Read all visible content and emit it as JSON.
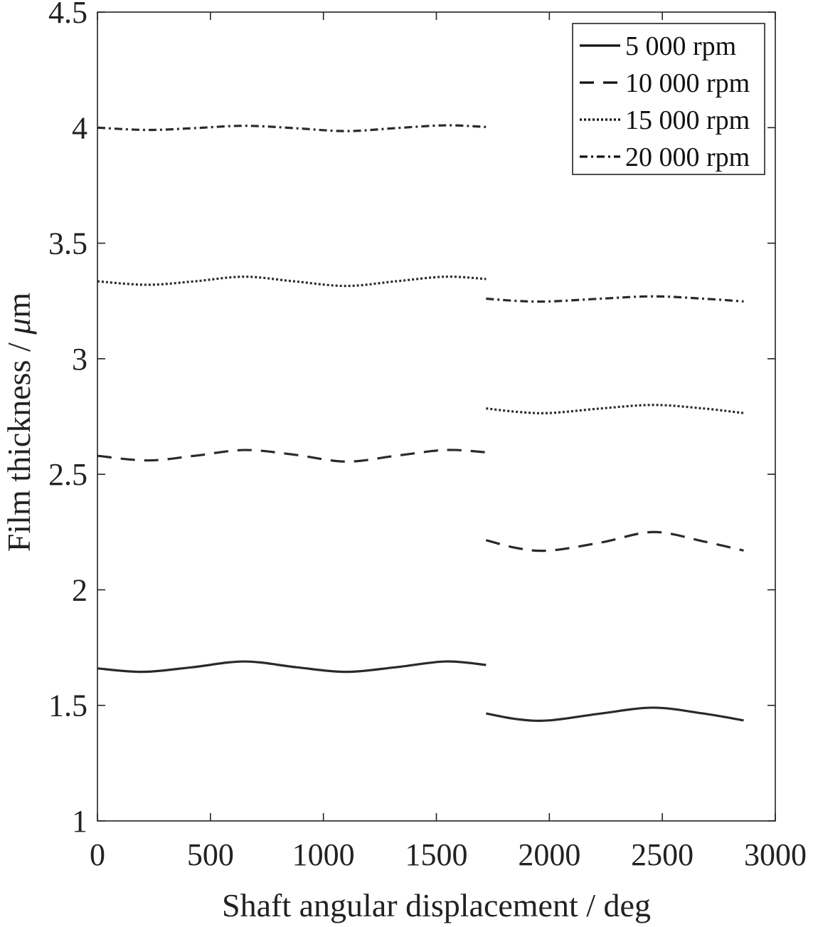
{
  "chart_data": {
    "type": "line",
    "title": "",
    "xlabel": "Shaft angular displacement / deg",
    "ylabel_prefix": "Film thickness / ",
    "ylabel_mu": "μ",
    "ylabel_suffix": "m",
    "xlim": [
      0,
      3000
    ],
    "ylim": [
      1,
      4.5
    ],
    "x_ticks": [
      "0",
      "500",
      "1000",
      "1500",
      "2000",
      "2500",
      "3000"
    ],
    "y_ticks": [
      "1",
      "1.5",
      "2",
      "2.5",
      "3",
      "3.5",
      "4",
      "4.5"
    ],
    "grid": false,
    "legend_position": "top-right",
    "series": [
      {
        "name": "5 000  rpm",
        "dash": "solid",
        "segments": [
          {
            "x": [
              0,
              200,
              420,
              650,
              880,
              1100,
              1320,
              1540,
              1720
            ],
            "y": [
              1.66,
              1.645,
              1.665,
              1.69,
              1.665,
              1.645,
              1.665,
              1.69,
              1.675
            ]
          },
          {
            "x": [
              1720,
              1860,
              2000,
              2230,
              2460,
              2680,
              2860
            ],
            "y": [
              1.465,
              1.44,
              1.435,
              1.465,
              1.49,
              1.465,
              1.435
            ]
          }
        ]
      },
      {
        "name": "10 000 rpm",
        "dash": "dashed",
        "segments": [
          {
            "x": [
              0,
              220,
              430,
              650,
              870,
              1100,
              1320,
              1540,
              1720
            ],
            "y": [
              2.58,
              2.56,
              2.58,
              2.605,
              2.585,
              2.555,
              2.58,
              2.605,
              2.595
            ]
          },
          {
            "x": [
              1720,
              1860,
              2000,
              2230,
              2460,
              2680,
              2860
            ],
            "y": [
              2.215,
              2.18,
              2.17,
              2.205,
              2.25,
              2.21,
              2.17
            ]
          }
        ]
      },
      {
        "name": "15 000 rpm",
        "dash": "dotted",
        "segments": [
          {
            "x": [
              0,
              220,
              430,
              650,
              870,
              1100,
              1320,
              1540,
              1720
            ],
            "y": [
              3.335,
              3.32,
              3.335,
              3.355,
              3.335,
              3.315,
              3.335,
              3.355,
              3.345
            ]
          },
          {
            "x": [
              1720,
              1860,
              2000,
              2230,
              2460,
              2680,
              2860
            ],
            "y": [
              2.785,
              2.77,
              2.765,
              2.785,
              2.8,
              2.785,
              2.765
            ]
          }
        ]
      },
      {
        "name": "20 000 rpm",
        "dash": "dashdot",
        "segments": [
          {
            "x": [
              0,
              220,
              430,
              650,
              870,
              1100,
              1320,
              1540,
              1720
            ],
            "y": [
              4.0,
              3.99,
              3.998,
              4.008,
              3.998,
              3.985,
              3.998,
              4.01,
              4.003
            ]
          },
          {
            "x": [
              1720,
              1860,
              2000,
              2230,
              2460,
              2680,
              2860
            ],
            "y": [
              3.26,
              3.25,
              3.248,
              3.26,
              3.27,
              3.26,
              3.248
            ]
          }
        ]
      }
    ]
  }
}
